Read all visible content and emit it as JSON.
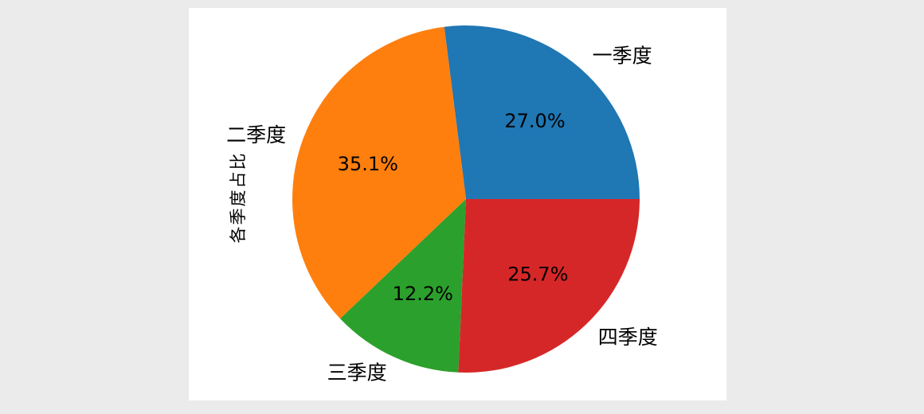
{
  "chart_data": {
    "type": "pie",
    "title": "",
    "ylabel": "各季度占比",
    "legend": "none",
    "start_angle_deg": 0,
    "direction": "counterclockwise",
    "label_distance": 1.1,
    "pct_distance": 0.6,
    "categories": [
      "一季度",
      "二季度",
      "三季度",
      "四季度"
    ],
    "values": [
      27.0,
      35.1,
      12.2,
      25.7
    ],
    "slices": [
      {
        "label": "一季度",
        "value": 27.0,
        "pct_label": "27.0%",
        "color": "#1f77b4"
      },
      {
        "label": "二季度",
        "value": 35.1,
        "pct_label": "35.1%",
        "color": "#ff7f0e"
      },
      {
        "label": "三季度",
        "value": 12.2,
        "pct_label": "12.2%",
        "color": "#2ca02c"
      },
      {
        "label": "四季度",
        "value": 25.7,
        "pct_label": "25.7%",
        "color": "#d62728"
      }
    ],
    "colors": {
      "page_bg": "#ebebeb",
      "figure_bg": "#ffffff",
      "text": "#000000"
    }
  }
}
